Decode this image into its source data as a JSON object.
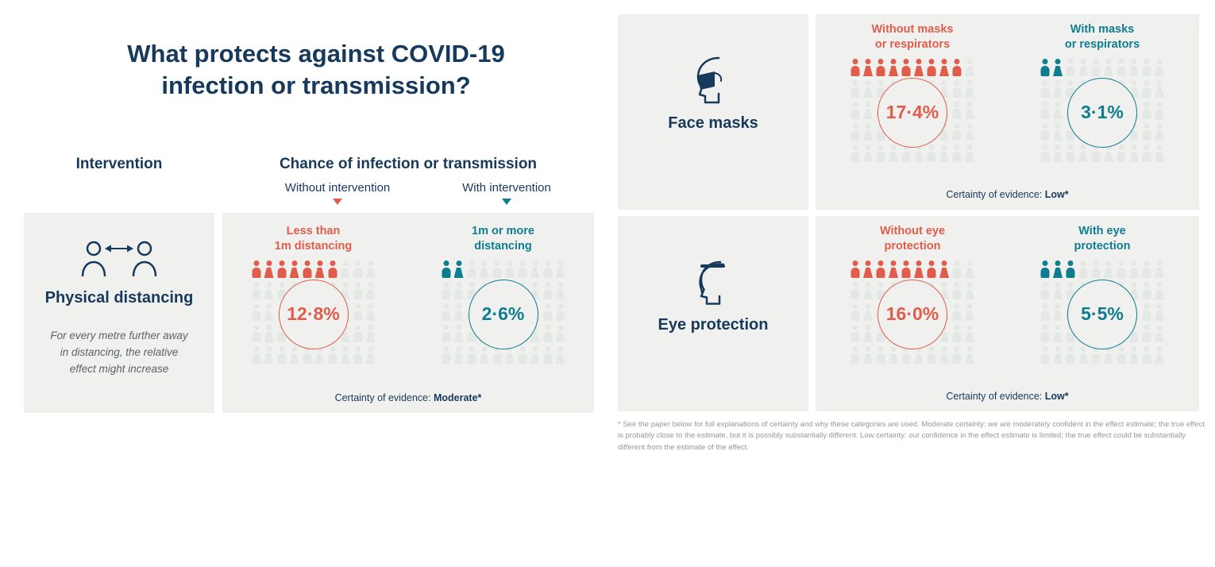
{
  "title": {
    "line1": "What protects against COVID-19",
    "line2": "infection or transmission?"
  },
  "columns": {
    "intervention": "Intervention",
    "chance": "Chance of infection or transmission",
    "without": "Without intervention",
    "with": "With intervention"
  },
  "colors": {
    "navy": "#17395c",
    "red": "#e05d4b",
    "teal": "#0e7d90",
    "panel_bg": "#f0f1ef",
    "faded_person": "#e3e8e7"
  },
  "sections": {
    "distancing": {
      "name": "Physical distancing",
      "note": "For every metre further away in distancing, the relative effect might increase",
      "groups": {
        "without": {
          "line1": "Less than",
          "line2": "1m distancing",
          "pct": "12·8%",
          "total": 50,
          "per_row": 10,
          "colored": 7,
          "color": "#e05d4b"
        },
        "with": {
          "line1": "1m or more",
          "line2": "distancing",
          "pct": "2·6%",
          "total": 50,
          "per_row": 10,
          "colored": 2,
          "color": "#0e7d90"
        }
      },
      "certainty_label": "Certainty of evidence:",
      "certainty_value": "Moderate*"
    },
    "masks": {
      "name": "Face masks",
      "groups": {
        "without": {
          "line1": "Without masks",
          "line2": "or respirators",
          "pct": "17·4%",
          "total": 50,
          "per_row": 10,
          "colored": 9,
          "color": "#e05d4b"
        },
        "with": {
          "line1": "With masks",
          "line2": "or respirators",
          "pct": "3·1%",
          "total": 50,
          "per_row": 10,
          "colored": 2,
          "color": "#0e7d90"
        }
      },
      "certainty_label": "Certainty of evidence:",
      "certainty_value": "Low*"
    },
    "eye": {
      "name": "Eye protection",
      "groups": {
        "without": {
          "line1": "Without eye",
          "line2": "protection",
          "pct": "16·0%",
          "total": 50,
          "per_row": 10,
          "colored": 8,
          "color": "#e05d4b"
        },
        "with": {
          "line1": "With eye",
          "line2": "protection",
          "pct": "5·5%",
          "total": 50,
          "per_row": 10,
          "colored": 3,
          "color": "#0e7d90"
        }
      },
      "certainty_label": "Certainty of evidence:",
      "certainty_value": "Low*"
    }
  },
  "footnote": "* See the paper below for full explanations of certainty and why these categories are used. Moderate certainty: we are moderately confident in the effect estimate; the true effect is probably close to the estimate, but it is possibly substantially different. Low certainty: our confidence in the effect estimate is limited; the true effect could be substantially different from the estimate of the effect.",
  "chart_data": [
    {
      "type": "pictogram",
      "intervention": "Physical distancing",
      "categories": [
        "Less than 1m distancing",
        "1m or more distancing"
      ],
      "values": [
        12.8,
        2.6
      ],
      "unit": "%",
      "certainty": "Moderate",
      "note": "Each pictogram grid = 50 person icons (10 per row, 5 rows); colored icons show risk"
    },
    {
      "type": "pictogram",
      "intervention": "Face masks",
      "categories": [
        "Without masks or respirators",
        "With masks or respirators"
      ],
      "values": [
        17.4,
        3.1
      ],
      "unit": "%",
      "certainty": "Low"
    },
    {
      "type": "pictogram",
      "intervention": "Eye protection",
      "categories": [
        "Without eye protection",
        "With eye protection"
      ],
      "values": [
        16.0,
        5.5
      ],
      "unit": "%",
      "certainty": "Low"
    }
  ]
}
